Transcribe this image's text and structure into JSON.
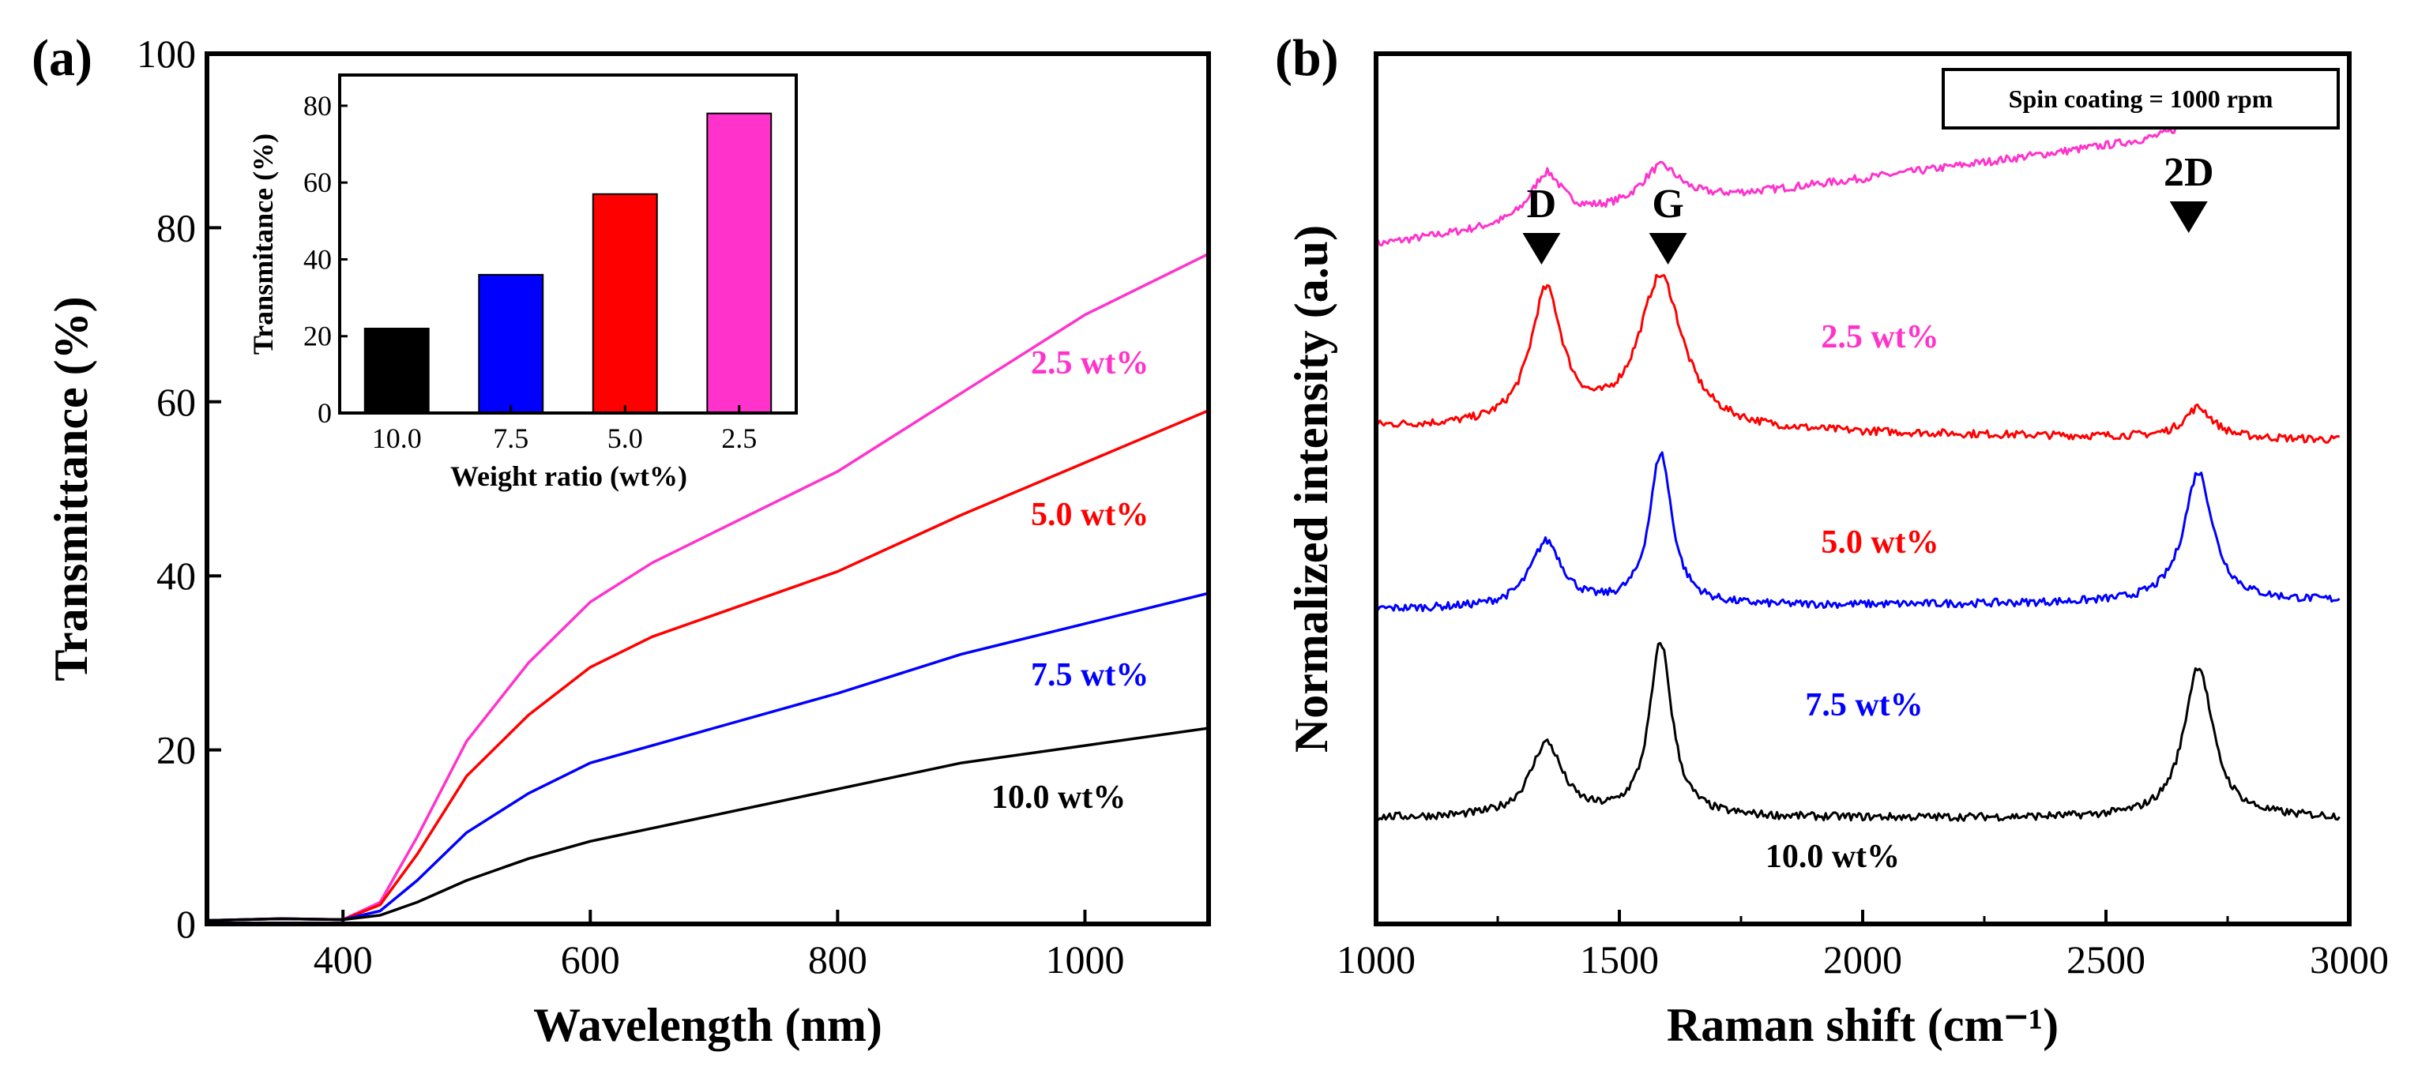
{
  "chart_data": [
    {
      "panel": "(a)",
      "type": "line",
      "xlabel": "Wavelength (nm)",
      "ylabel": "Transmittance (%)",
      "xlim": [
        290,
        1100
      ],
      "ylim": [
        0,
        100
      ],
      "xticks": [
        400,
        600,
        800,
        1000
      ],
      "yticks": [
        0,
        20,
        40,
        60,
        80,
        100
      ],
      "x": [
        290,
        350,
        400,
        430,
        460,
        500,
        550,
        600,
        650,
        700,
        800,
        900,
        1000,
        1100
      ],
      "series": [
        {
          "name": "2.5 wt%",
          "color": "#ff33cc",
          "values": [
            0.4,
            0.6,
            0.5,
            2.5,
            10,
            21,
            30,
            37,
            41.5,
            45,
            52,
            61,
            70,
            77
          ]
        },
        {
          "name": "5.0 wt%",
          "color": "#ff0000",
          "values": [
            0.4,
            0.6,
            0.5,
            2.2,
            8,
            17,
            24,
            29.5,
            33,
            35.5,
            40.5,
            47,
            53,
            59
          ]
        },
        {
          "name": "7.5 wt%",
          "color": "#0000ff",
          "values": [
            0.4,
            0.6,
            0.5,
            1.5,
            5,
            10.5,
            15,
            18.5,
            20.5,
            22.5,
            26.5,
            31,
            34.5,
            38
          ]
        },
        {
          "name": "10.0 wt%",
          "color": "#000000",
          "values": [
            0.4,
            0.6,
            0.5,
            1.0,
            2.5,
            5,
            7.5,
            9.5,
            11,
            12.5,
            15.5,
            18.5,
            20.5,
            22.5
          ]
        }
      ],
      "inset": {
        "type": "bar",
        "xlabel": "Weight ratio (wt%)",
        "ylabel": "Transmitance (%)",
        "ylim": [
          0,
          88
        ],
        "yticks": [
          0,
          20,
          40,
          60,
          80
        ],
        "categories": [
          "10.0",
          "7.5",
          "5.0",
          "2.5"
        ],
        "values": [
          22,
          36,
          57,
          78
        ],
        "colors": [
          "#000000",
          "#0000ff",
          "#ff0000",
          "#ff33cc"
        ]
      }
    },
    {
      "panel": "(b)",
      "type": "line",
      "xlabel": "Raman shift (cm⁻¹)",
      "ylabel": "Normalized intensity (a.u)",
      "xlim": [
        1000,
        3000
      ],
      "xticks": [
        1000,
        1500,
        2000,
        2500,
        3000
      ],
      "annotation": "Spin coating = 1000 rpm",
      "peaks": [
        {
          "label": "D",
          "x": 1350
        },
        {
          "label": "G",
          "x": 1600
        },
        {
          "label": "2D",
          "x": 2690
        }
      ],
      "series": [
        {
          "name": "2.5 wt%",
          "color": "#ff33cc",
          "offset": 6.6,
          "slope": 1.5,
          "d": 0.55,
          "g": 0.45,
          "g_width": 50,
          "peak2d": 0.25
        },
        {
          "name": "5.0 wt%",
          "color": "#ff0000",
          "offset": 4.5,
          "slope": -0.15,
          "d": 1.55,
          "g": 1.75,
          "g_width": 55,
          "peak2d": 0.35
        },
        {
          "name": "7.5 wt%",
          "color": "#0000ff",
          "offset": 2.4,
          "slope": 0.1,
          "d": 0.75,
          "g": 1.75,
          "g_width": 28,
          "peak2d": 1.5
        },
        {
          "name": "10.0 wt%",
          "color": "#000000",
          "offset": 0.0,
          "slope": 0.0,
          "d": 0.85,
          "g": 2.0,
          "g_width": 28,
          "peak2d": 1.75
        }
      ]
    }
  ]
}
